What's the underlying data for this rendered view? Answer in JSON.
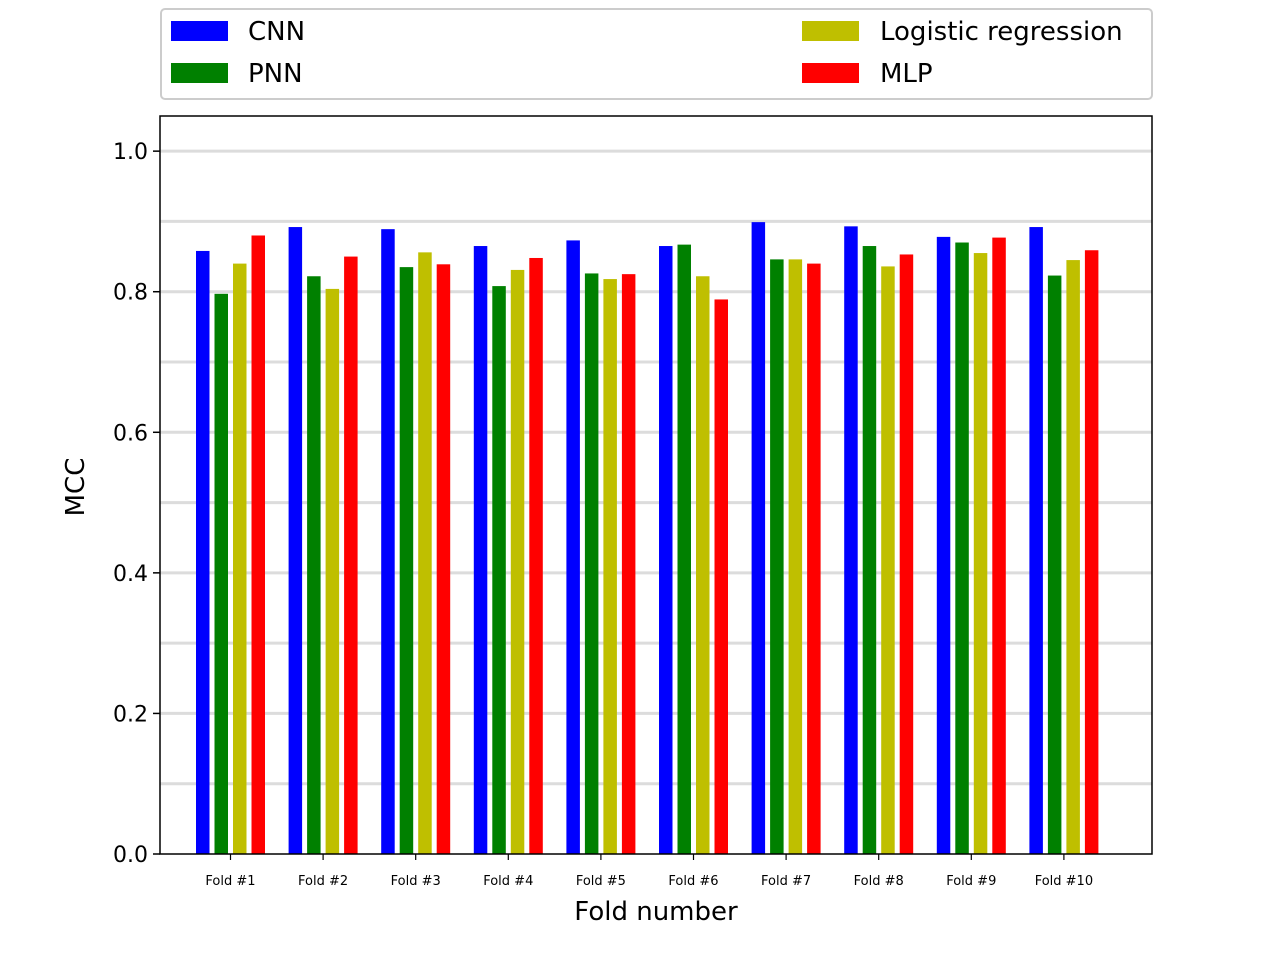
{
  "chart_data": {
    "type": "bar",
    "title": "",
    "xlabel": "Fold number",
    "ylabel": "MCC",
    "ylim": [
      0,
      1.05
    ],
    "yticks": [
      "0.0",
      "0.2",
      "0.4",
      "0.6",
      "0.8",
      "1.0"
    ],
    "grid": "horizontal",
    "legend_position": "top",
    "categories": [
      "Fold #1",
      "Fold #2",
      "Fold #3",
      "Fold #4",
      "Fold #5",
      "Fold #6",
      "Fold #7",
      "Fold #8",
      "Fold #9",
      "Fold #10"
    ],
    "series": [
      {
        "name": "CNN",
        "color": "#0000ff",
        "values": [
          0.858,
          0.892,
          0.889,
          0.865,
          0.873,
          0.865,
          0.899,
          0.893,
          0.878,
          0.892
        ]
      },
      {
        "name": "PNN",
        "color": "#008000",
        "values": [
          0.797,
          0.822,
          0.835,
          0.808,
          0.826,
          0.867,
          0.846,
          0.865,
          0.87,
          0.823
        ]
      },
      {
        "name": "Logistic regression",
        "color": "#bfbf00",
        "values": [
          0.84,
          0.804,
          0.856,
          0.831,
          0.818,
          0.822,
          0.846,
          0.836,
          0.855,
          0.845
        ]
      },
      {
        "name": "MLP",
        "color": "#ff0000",
        "values": [
          0.88,
          0.85,
          0.839,
          0.848,
          0.825,
          0.789,
          0.84,
          0.853,
          0.877,
          0.859
        ]
      }
    ]
  }
}
